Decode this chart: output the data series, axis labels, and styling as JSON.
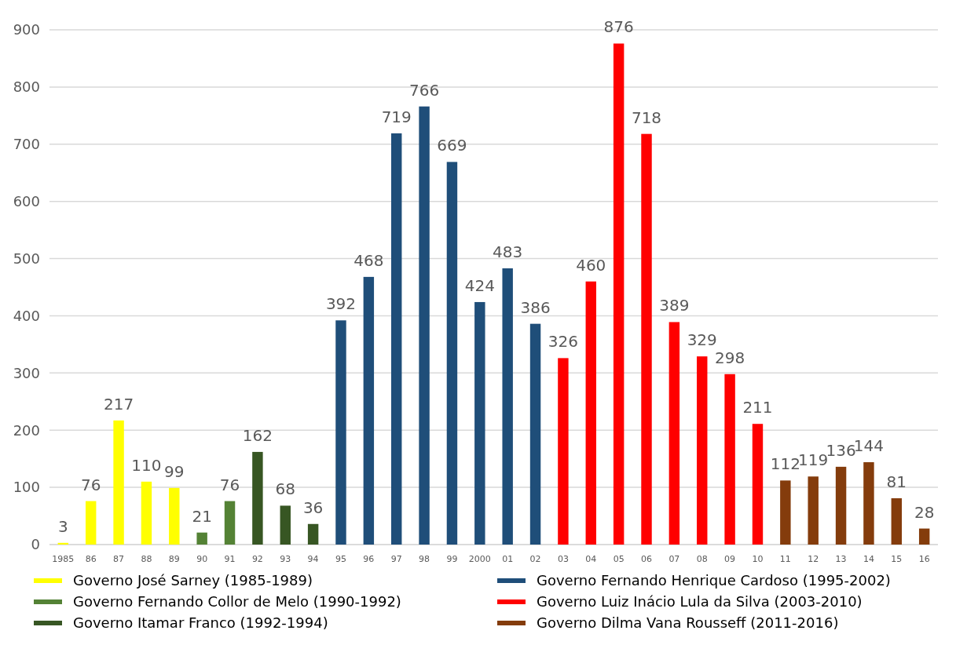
{
  "chart_data": {
    "type": "bar",
    "categories": [
      "1985",
      "86",
      "87",
      "88",
      "89",
      "90",
      "91",
      "92",
      "93",
      "94",
      "95",
      "96",
      "97",
      "98",
      "99",
      "2000",
      "01",
      "02",
      "03",
      "04",
      "05",
      "06",
      "07",
      "08",
      "09",
      "10",
      "11",
      "12",
      "13",
      "14",
      "15",
      "16"
    ],
    "series": [
      {
        "name": "Governo José Sarney (1985-1989)",
        "color": "#ffff00",
        "values": [
          3,
          76,
          217,
          110,
          99,
          null,
          null,
          null,
          null,
          null,
          null,
          null,
          null,
          null,
          null,
          null,
          null,
          null,
          null,
          null,
          null,
          null,
          null,
          null,
          null,
          null,
          null,
          null,
          null,
          null,
          null,
          null
        ]
      },
      {
        "name": "Governo Fernando Collor de Melo (1990-1992)",
        "color": "#548235",
        "values": [
          null,
          null,
          null,
          null,
          null,
          21,
          76,
          null,
          null,
          null,
          null,
          null,
          null,
          null,
          null,
          null,
          null,
          null,
          null,
          null,
          null,
          null,
          null,
          null,
          null,
          null,
          null,
          null,
          null,
          null,
          null,
          null
        ]
      },
      {
        "name": "Governo Itamar Franco (1992-1994)",
        "color": "#375623",
        "values": [
          null,
          null,
          null,
          null,
          null,
          null,
          null,
          162,
          68,
          36,
          null,
          null,
          null,
          null,
          null,
          null,
          null,
          null,
          null,
          null,
          null,
          null,
          null,
          null,
          null,
          null,
          null,
          null,
          null,
          null,
          null,
          null
        ]
      },
      {
        "name": "Governo Fernando Henrique Cardoso (1995-2002)",
        "color": "#1f4e79",
        "values": [
          null,
          null,
          null,
          null,
          null,
          null,
          null,
          null,
          null,
          null,
          392,
          468,
          719,
          766,
          669,
          424,
          483,
          386,
          null,
          null,
          null,
          null,
          null,
          null,
          null,
          null,
          null,
          null,
          null,
          null,
          null,
          null
        ]
      },
      {
        "name": "Governo Luiz Inácio Lula da Silva (2003-2010)",
        "color": "#ff0000",
        "values": [
          null,
          null,
          null,
          null,
          null,
          null,
          null,
          null,
          null,
          null,
          null,
          null,
          null,
          null,
          null,
          null,
          null,
          null,
          326,
          460,
          876,
          718,
          389,
          329,
          298,
          211,
          null,
          null,
          null,
          null,
          null,
          null
        ]
      },
      {
        "name": "Governo Dilma Vana Rousseff (2011-2016)",
        "color": "#843c0c",
        "values": [
          null,
          null,
          null,
          null,
          null,
          null,
          null,
          null,
          null,
          null,
          null,
          null,
          null,
          null,
          null,
          null,
          null,
          null,
          null,
          null,
          null,
          null,
          null,
          null,
          null,
          null,
          112,
          119,
          136,
          144,
          81,
          28
        ]
      }
    ],
    "ylim": [
      0,
      900
    ],
    "yticks": [
      0,
      100,
      200,
      300,
      400,
      500,
      600,
      700,
      800,
      900
    ],
    "grid": "y",
    "data_labels": true,
    "legend": "bottom"
  }
}
